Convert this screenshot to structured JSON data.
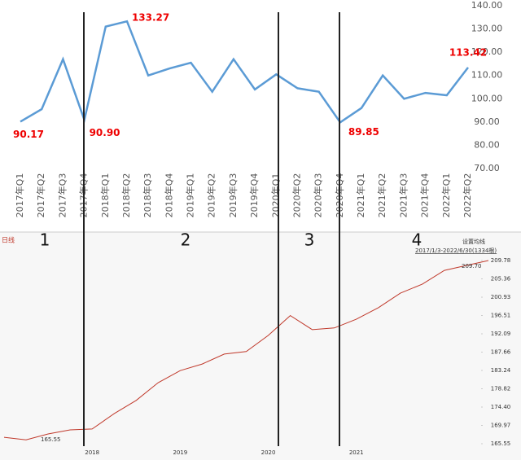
{
  "chart_data": [
    {
      "type": "line",
      "categories": [
        "2017年Q1",
        "2017年Q2",
        "2017年Q3",
        "2017年Q4",
        "2018年Q1",
        "2018年Q2",
        "2018年Q3",
        "2018年Q4",
        "2019年Q1",
        "2019年Q2",
        "2019年Q3",
        "2019年Q4",
        "2020年Q1",
        "2020年Q2",
        "2020年Q3",
        "2020年Q4",
        "2021年Q1",
        "2021年Q2",
        "2021年Q3",
        "2021年Q4",
        "2022年Q1",
        "2022年Q2"
      ],
      "values": [
        90.17,
        95.5,
        117,
        90.9,
        131,
        133.27,
        110,
        113,
        115.5,
        103,
        117,
        104,
        110.5,
        104.5,
        103,
        89.85,
        96,
        110,
        100,
        102.5,
        101.5,
        113.42
      ],
      "value_labels": [
        "90.17",
        null,
        null,
        "90.90",
        null,
        "133.27",
        null,
        null,
        null,
        null,
        null,
        null,
        null,
        null,
        null,
        "89.85",
        null,
        null,
        null,
        null,
        null,
        "113.42"
      ],
      "color": "#5b9bd5",
      "ylim": [
        70,
        140
      ],
      "yticks": [
        {
          "value": 70,
          "label": "70.00"
        },
        {
          "value": 80,
          "label": "80.00"
        },
        {
          "value": 90,
          "label": "90.00"
        },
        {
          "value": 100,
          "label": "100.00"
        },
        {
          "value": 110,
          "label": "110.00"
        },
        {
          "value": 120,
          "label": "120.00"
        },
        {
          "value": 130,
          "label": "130.00"
        },
        {
          "value": 140,
          "label": "140.00"
        }
      ],
      "annotations": [
        "1",
        "2",
        "3",
        "4"
      ]
    },
    {
      "type": "line",
      "title": "日线",
      "button": "设置均线",
      "subtitle": "2017/1/3-2022/6/30(1334根)",
      "categories": [
        null,
        null,
        null,
        null,
        "2018",
        null,
        null,
        null,
        "2019",
        null,
        null,
        null,
        "2020",
        null,
        null,
        null,
        "2021",
        null,
        null,
        null,
        null,
        null,
        null
      ],
      "values": [
        167.1,
        166.5,
        167.9,
        168.9,
        169.1,
        172.8,
        176,
        180.3,
        183.2,
        184.8,
        187.2,
        187.8,
        191.7,
        196.5,
        193.1,
        193.5,
        195.6,
        198.4,
        201.9,
        204.1,
        207.4,
        208.6,
        209.78
      ],
      "color": "#c0392b",
      "ylim": [
        165.55,
        209.78
      ],
      "yticks": [
        165.55,
        169.97,
        {
          "value": 174.4,
          "label": "174.40"
        },
        178.82,
        183.24,
        187.66,
        192.09,
        196.51,
        200.93,
        205.36,
        209.78
      ],
      "annotations": [
        "209.70",
        "165.55"
      ]
    }
  ]
}
